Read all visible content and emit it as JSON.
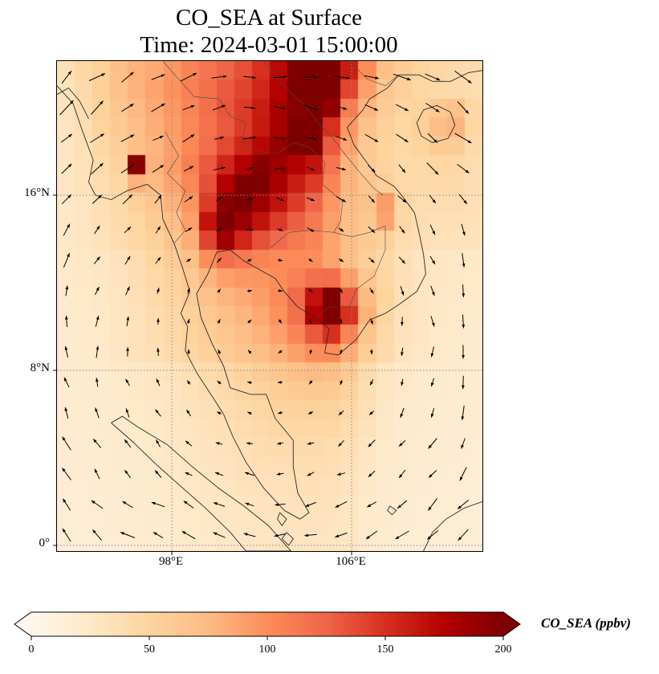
{
  "title": {
    "line1": "CO_SEA at Surface",
    "line2": "Time: 2024-03-01 15:00:00"
  },
  "map": {
    "x_ticks": [
      {
        "label": "98°E",
        "lon": 98
      },
      {
        "label": "106°E",
        "lon": 106
      }
    ],
    "y_ticks": [
      {
        "label": "16°N",
        "lat": 16
      },
      {
        "label": "8°N",
        "lat": 8
      },
      {
        "label": "0°",
        "lat": 0
      }
    ]
  },
  "colorbar": {
    "label": "CO_SEA (ppbv)",
    "ticks": [
      0,
      50,
      100,
      150,
      200
    ],
    "vmin": 0,
    "vmax": 200
  },
  "chart_data": {
    "type": "heatmap",
    "variable": "CO_SEA",
    "units": "ppbv",
    "level": "Surface",
    "time": "2024-03-01 15:00:00",
    "title": "CO_SEA at Surface",
    "subtitle": "Time: 2024-03-01 15:00:00",
    "lon_range": [
      92.89,
      111.82
    ],
    "lat_range": [
      -0.26,
      22.13
    ],
    "vmin": 0,
    "vmax": 200,
    "colormap": "OrRd (extended both ends)",
    "colormap_stops": [
      "#fff7ec",
      "#fee8c8",
      "#fdd49e",
      "#fdbb84",
      "#fc8d59",
      "#ef6548",
      "#d7301f",
      "#b30000",
      "#7f0000"
    ],
    "co_grid_note": "approx CO ppbv, 26 rows (north 22.1N to south -0.3N) x 24 cols (west 92.9E to east 111.8E)",
    "co_grid": [
      [
        35,
        45,
        55,
        70,
        80,
        85,
        95,
        105,
        115,
        125,
        135,
        150,
        170,
        210,
        250,
        245,
        160,
        100,
        70,
        58,
        50,
        45,
        42,
        40
      ],
      [
        33,
        42,
        55,
        68,
        80,
        88,
        98,
        108,
        118,
        130,
        140,
        155,
        175,
        215,
        250,
        235,
        140,
        90,
        64,
        54,
        48,
        44,
        42,
        40
      ],
      [
        31,
        40,
        52,
        64,
        76,
        85,
        95,
        105,
        118,
        132,
        145,
        160,
        180,
        195,
        245,
        190,
        110,
        78,
        58,
        50,
        52,
        62,
        68,
        46
      ],
      [
        30,
        38,
        50,
        60,
        72,
        82,
        92,
        104,
        116,
        130,
        145,
        162,
        180,
        200,
        230,
        150,
        95,
        68,
        54,
        48,
        55,
        72,
        78,
        48
      ],
      [
        29,
        36,
        46,
        56,
        70,
        78,
        90,
        104,
        120,
        138,
        155,
        172,
        188,
        205,
        215,
        130,
        88,
        62,
        50,
        45,
        50,
        60,
        58,
        42
      ],
      [
        28,
        34,
        42,
        52,
        195,
        80,
        92,
        108,
        130,
        155,
        175,
        195,
        185,
        175,
        165,
        115,
        80,
        60,
        50,
        44,
        44,
        48,
        46,
        40
      ],
      [
        27,
        32,
        40,
        47,
        80,
        75,
        88,
        104,
        135,
        175,
        200,
        205,
        180,
        160,
        145,
        105,
        78,
        66,
        56,
        44,
        42,
        44,
        43,
        38
      ],
      [
        26,
        30,
        37,
        43,
        54,
        64,
        80,
        96,
        145,
        195,
        205,
        185,
        165,
        145,
        125,
        95,
        75,
        68,
        92,
        48,
        40,
        40,
        40,
        36
      ],
      [
        26,
        29,
        35,
        41,
        48,
        58,
        72,
        90,
        165,
        210,
        185,
        165,
        145,
        128,
        112,
        90,
        72,
        63,
        88,
        46,
        38,
        36,
        36,
        34
      ],
      [
        25,
        28,
        33,
        39,
        45,
        53,
        65,
        82,
        140,
        185,
        155,
        135,
        122,
        112,
        105,
        88,
        72,
        60,
        53,
        40,
        36,
        34,
        33,
        32
      ],
      [
        24,
        26,
        28,
        32,
        40,
        48,
        58,
        70,
        100,
        120,
        112,
        106,
        102,
        102,
        100,
        88,
        70,
        56,
        45,
        36,
        30,
        27,
        26,
        25
      ],
      [
        23,
        25,
        27,
        31,
        38,
        44,
        52,
        62,
        78,
        90,
        95,
        96,
        100,
        108,
        118,
        120,
        90,
        64,
        48,
        36,
        30,
        27,
        26,
        24
      ],
      [
        22,
        24,
        26,
        30,
        36,
        42,
        50,
        58,
        68,
        78,
        85,
        92,
        102,
        122,
        165,
        225,
        130,
        75,
        50,
        36,
        29,
        26,
        25,
        23
      ],
      [
        22,
        23,
        25,
        29,
        34,
        40,
        46,
        53,
        62,
        70,
        78,
        86,
        98,
        118,
        175,
        250,
        150,
        80,
        48,
        34,
        28,
        25,
        24,
        22
      ],
      [
        21,
        22,
        24,
        28,
        33,
        38,
        44,
        50,
        57,
        64,
        72,
        80,
        90,
        105,
        130,
        150,
        105,
        65,
        44,
        32,
        27,
        24,
        23,
        21
      ],
      [
        21,
        22,
        23,
        27,
        32,
        36,
        41,
        47,
        53,
        59,
        66,
        72,
        80,
        90,
        100,
        100,
        82,
        56,
        42,
        31,
        26,
        23,
        22,
        20
      ],
      [
        20,
        21,
        22,
        24,
        26,
        29,
        32,
        36,
        41,
        46,
        52,
        58,
        64,
        70,
        74,
        72,
        60,
        42,
        30,
        25,
        22,
        20,
        20,
        19
      ],
      [
        19,
        20,
        21,
        23,
        25,
        27,
        30,
        34,
        38,
        42,
        47,
        52,
        56,
        60,
        62,
        60,
        52,
        38,
        28,
        23,
        21,
        20,
        19,
        19
      ],
      [
        19,
        19,
        20,
        22,
        24,
        26,
        29,
        32,
        35,
        39,
        43,
        47,
        50,
        52,
        53,
        51,
        45,
        35,
        26,
        22,
        20,
        19,
        19,
        18
      ],
      [
        18,
        19,
        20,
        21,
        23,
        25,
        27,
        30,
        33,
        36,
        39,
        42,
        45,
        46,
        46,
        45,
        40,
        32,
        25,
        21,
        20,
        19,
        18,
        18
      ],
      [
        18,
        18,
        19,
        20,
        22,
        24,
        26,
        28,
        31,
        34,
        36,
        39,
        41,
        42,
        42,
        40,
        36,
        29,
        23,
        20,
        19,
        18,
        18,
        17
      ],
      [
        17,
        18,
        19,
        20,
        21,
        23,
        25,
        27,
        29,
        31,
        34,
        36,
        37,
        38,
        38,
        37,
        33,
        27,
        22,
        20,
        18,
        18,
        17,
        17
      ],
      [
        17,
        17,
        18,
        19,
        21,
        22,
        24,
        26,
        28,
        30,
        32,
        33,
        34,
        35,
        35,
        34,
        31,
        25,
        21,
        19,
        18,
        17,
        17,
        16
      ],
      [
        16,
        17,
        17,
        18,
        20,
        21,
        23,
        25,
        26,
        28,
        30,
        31,
        32,
        33,
        33,
        32,
        29,
        24,
        20,
        18,
        17,
        17,
        16,
        16
      ],
      [
        16,
        16,
        17,
        18,
        19,
        21,
        22,
        24,
        25,
        27,
        28,
        30,
        30,
        31,
        31,
        30,
        28,
        23,
        20,
        18,
        17,
        16,
        16,
        15
      ],
      [
        15,
        16,
        16,
        17,
        19,
        20,
        22,
        23,
        24,
        26,
        27,
        28,
        29,
        30,
        30,
        29,
        27,
        22,
        19,
        17,
        16,
        16,
        15,
        15
      ]
    ],
    "quiver": {
      "note": "wind vectors approximated by clockwise gyre field, plot-local px",
      "x0": 12,
      "y0": 20,
      "dx": 38,
      "dy": 38,
      "cols": 14,
      "rows": 16,
      "center": [
        280,
        375
      ],
      "scale": 0.06,
      "bias": [
        -2,
        1
      ],
      "min_len": 6,
      "max_len": 26
    },
    "coastlines": [
      [
        [
          92.89,
          21.0
        ],
        [
          93.6,
          20.2
        ],
        [
          94.0,
          19.0
        ],
        [
          94.5,
          17.6
        ],
        [
          94.3,
          16.6
        ],
        [
          94.6,
          16.0
        ],
        [
          95.3,
          15.8
        ],
        [
          96.0,
          16.2
        ],
        [
          96.9,
          16.5
        ],
        [
          97.5,
          16.0
        ],
        [
          97.6,
          14.9
        ],
        [
          98.1,
          13.8
        ],
        [
          98.5,
          12.6
        ],
        [
          98.8,
          11.6
        ],
        [
          98.4,
          10.6
        ],
        [
          98.7,
          10.0
        ],
        [
          98.6,
          8.9
        ],
        [
          99.1,
          7.9
        ],
        [
          99.8,
          6.8
        ],
        [
          100.3,
          6.0
        ],
        [
          100.7,
          5.0
        ],
        [
          101.3,
          3.8
        ],
        [
          102.1,
          2.6
        ],
        [
          103.0,
          1.6
        ],
        [
          103.7,
          1.2
        ],
        [
          104.1,
          1.5
        ],
        [
          103.6,
          2.4
        ],
        [
          103.4,
          3.6
        ],
        [
          103.4,
          4.8
        ],
        [
          102.6,
          5.8
        ],
        [
          102.2,
          6.9
        ],
        [
          101.5,
          6.9
        ],
        [
          100.6,
          7.2
        ],
        [
          100.3,
          8.2
        ],
        [
          99.8,
          9.2
        ],
        [
          99.3,
          10.4
        ],
        [
          99.1,
          11.5
        ],
        [
          99.6,
          12.4
        ],
        [
          100.0,
          13.4
        ],
        [
          100.6,
          13.5
        ],
        [
          101.2,
          13.0
        ],
        [
          101.9,
          12.6
        ],
        [
          102.6,
          12.2
        ],
        [
          103.0,
          11.6
        ],
        [
          103.6,
          10.9
        ],
        [
          104.4,
          10.4
        ],
        [
          105.0,
          9.9
        ],
        [
          104.8,
          8.8
        ],
        [
          105.4,
          8.7
        ],
        [
          106.2,
          9.4
        ],
        [
          106.8,
          10.3
        ],
        [
          107.5,
          10.6
        ],
        [
          108.1,
          11.0
        ],
        [
          108.9,
          11.6
        ],
        [
          109.3,
          12.4
        ],
        [
          109.2,
          13.3
        ],
        [
          109.0,
          14.3
        ],
        [
          108.8,
          15.2
        ],
        [
          108.3,
          15.9
        ],
        [
          107.9,
          16.4
        ],
        [
          107.1,
          16.9
        ],
        [
          106.6,
          17.6
        ],
        [
          106.1,
          18.3
        ],
        [
          105.8,
          19.1
        ],
        [
          106.5,
          19.9
        ],
        [
          106.8,
          20.4
        ],
        [
          107.6,
          20.9
        ],
        [
          108.1,
          21.5
        ],
        [
          109.0,
          21.5
        ],
        [
          109.6,
          21.2
        ],
        [
          110.4,
          21.2
        ],
        [
          111.2,
          21.6
        ],
        [
          111.82,
          21.7
        ]
      ],
      [
        [
          92.89,
          20.6
        ],
        [
          93.4,
          20.9
        ],
        [
          93.9,
          20.3
        ],
        [
          94.3,
          19.5
        ]
      ],
      [
        [
          108.9,
          19.3
        ],
        [
          109.2,
          19.9
        ],
        [
          109.8,
          20.1
        ],
        [
          110.4,
          19.8
        ],
        [
          110.6,
          19.2
        ],
        [
          110.3,
          18.6
        ],
        [
          109.6,
          18.4
        ],
        [
          109.1,
          18.7
        ],
        [
          108.9,
          19.3
        ]
      ],
      [
        [
          95.3,
          5.6
        ],
        [
          96.3,
          4.7
        ],
        [
          97.3,
          3.7
        ],
        [
          98.4,
          2.7
        ],
        [
          99.5,
          1.7
        ],
        [
          100.6,
          0.6
        ],
        [
          101.3,
          -0.26
        ],
        [
          103.3,
          -0.26
        ],
        [
          102.3,
          0.9
        ],
        [
          101.2,
          1.8
        ],
        [
          100.1,
          2.6
        ],
        [
          98.9,
          3.6
        ],
        [
          97.8,
          4.6
        ],
        [
          96.5,
          5.4
        ],
        [
          95.8,
          5.9
        ],
        [
          95.3,
          5.6
        ]
      ],
      [
        [
          109.2,
          -0.26
        ],
        [
          109.6,
          0.6
        ],
        [
          110.2,
          1.2
        ],
        [
          111.0,
          1.7
        ],
        [
          111.82,
          2.0
        ]
      ],
      [
        [
          102.8,
          1.5
        ],
        [
          103.1,
          1.2
        ],
        [
          102.9,
          0.9
        ],
        [
          102.7,
          1.2
        ],
        [
          102.8,
          1.5
        ]
      ],
      [
        [
          103.1,
          0.6
        ],
        [
          103.4,
          0.3
        ],
        [
          103.2,
          0.0
        ],
        [
          102.9,
          0.3
        ],
        [
          103.1,
          0.6
        ]
      ],
      [
        [
          107.7,
          1.8
        ],
        [
          108.0,
          1.6
        ],
        [
          107.8,
          1.4
        ],
        [
          107.6,
          1.6
        ],
        [
          107.7,
          1.8
        ]
      ]
    ],
    "borders": [
      [
        [
          97.7,
          18.9
        ],
        [
          98.3,
          17.8
        ],
        [
          97.8,
          17.0
        ],
        [
          98.6,
          16.2
        ],
        [
          98.2,
          15.2
        ],
        [
          98.6,
          14.4
        ],
        [
          98.1,
          13.8
        ]
      ],
      [
        [
          100.1,
          20.4
        ],
        [
          100.6,
          19.6
        ],
        [
          101.3,
          19.3
        ],
        [
          101.1,
          18.4
        ],
        [
          101.8,
          18.0
        ],
        [
          102.7,
          17.9
        ],
        [
          103.4,
          18.4
        ],
        [
          104.1,
          18.2
        ],
        [
          104.8,
          17.5
        ],
        [
          104.7,
          16.5
        ],
        [
          105.6,
          15.7
        ],
        [
          105.5,
          14.8
        ],
        [
          105.2,
          14.3
        ]
      ],
      [
        [
          102.4,
          13.6
        ],
        [
          103.2,
          14.3
        ],
        [
          104.2,
          14.4
        ],
        [
          105.2,
          14.3
        ],
        [
          106.0,
          14.1
        ],
        [
          106.8,
          14.3
        ],
        [
          107.5,
          14.6
        ]
      ],
      [
        [
          102.1,
          22.13
        ],
        [
          102.8,
          21.2
        ],
        [
          103.9,
          20.1
        ],
        [
          104.6,
          19.2
        ],
        [
          105.1,
          18.7
        ],
        [
          105.6,
          18.0
        ],
        [
          106.4,
          17.0
        ],
        [
          107.0,
          16.3
        ],
        [
          107.4,
          16.0
        ]
      ],
      [
        [
          107.5,
          14.6
        ],
        [
          107.5,
          13.5
        ],
        [
          107.0,
          12.3
        ],
        [
          106.2,
          11.7
        ],
        [
          105.9,
          10.9
        ],
        [
          105.0,
          10.9
        ],
        [
          104.4,
          10.4
        ]
      ],
      [
        [
          105.9,
          22.13
        ],
        [
          106.7,
          21.3
        ],
        [
          107.5,
          21.0
        ],
        [
          108.1,
          21.5
        ]
      ],
      [
        [
          97.6,
          22.13
        ],
        [
          98.3,
          21.3
        ],
        [
          99.0,
          20.5
        ],
        [
          100.1,
          20.4
        ]
      ]
    ]
  }
}
